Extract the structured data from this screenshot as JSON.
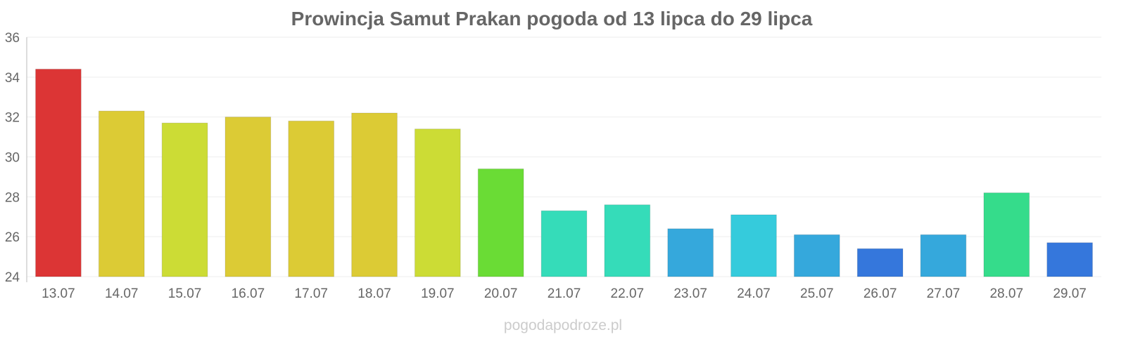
{
  "chart_data": {
    "type": "bar",
    "title": "Prowincja Samut Prakan pogoda od 13 lipca do 29 lipca",
    "xlabel": "",
    "ylabel": "",
    "categories": [
      "13.07",
      "14.07",
      "15.07",
      "16.07",
      "17.07",
      "18.07",
      "19.07",
      "20.07",
      "21.07",
      "22.07",
      "23.07",
      "24.07",
      "25.07",
      "26.07",
      "27.07",
      "28.07",
      "29.07"
    ],
    "values": [
      34.4,
      32.3,
      31.7,
      32.0,
      31.8,
      32.2,
      31.4,
      29.4,
      27.3,
      27.6,
      26.4,
      27.1,
      26.1,
      25.4,
      26.1,
      28.2,
      25.7
    ],
    "colors": [
      "#dc3535",
      "#dccb35",
      "#ccdc35",
      "#dccb35",
      "#dccb35",
      "#dccb35",
      "#ccdc35",
      "#6adc35",
      "#35dcb9",
      "#35dcb9",
      "#35a8dc",
      "#35cbdc",
      "#35a8dc",
      "#3577dc",
      "#35a8dc",
      "#35dc8b",
      "#3577dc"
    ],
    "ylim": [
      24,
      36
    ],
    "yticks": [
      24,
      26,
      28,
      30,
      32,
      34,
      36
    ],
    "grid": true,
    "legend": "none"
  },
  "watermark": "pogodapodroze.pl"
}
